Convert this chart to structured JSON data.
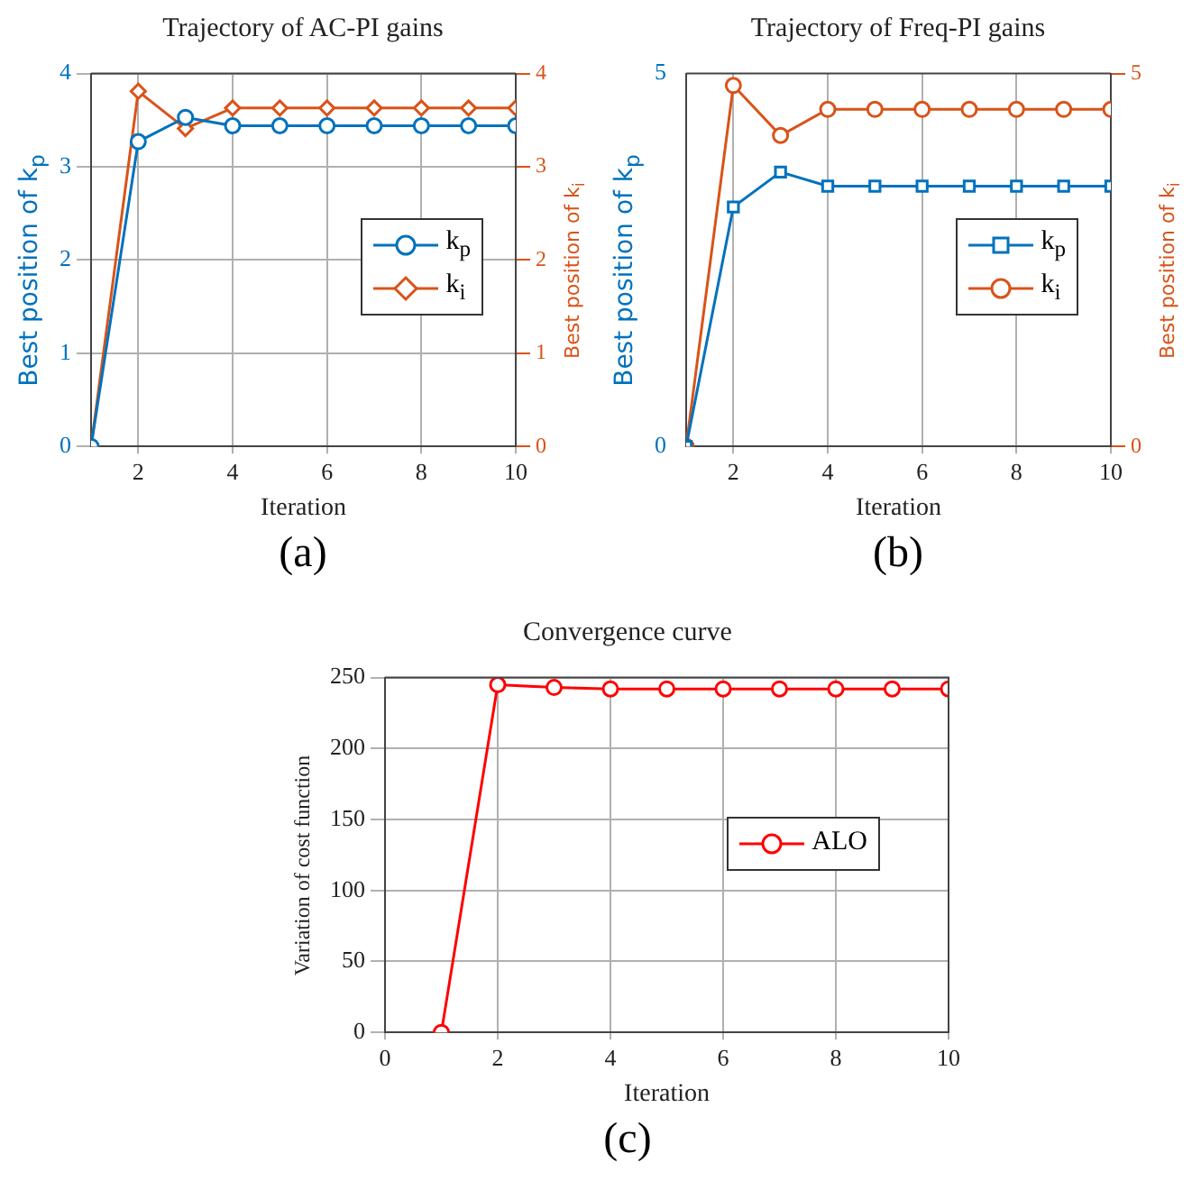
{
  "chart_data": [
    {
      "type": "line",
      "title": "Trajectory of AC-PI gains",
      "xlabel": "Iteration",
      "ylabel": "Best position of k$_{p}$",
      "y2label": "Best position of k$_{i}$",
      "x": [
        1,
        2,
        3,
        4,
        5,
        6,
        7,
        8,
        9,
        10
      ],
      "xlim": [
        1,
        10
      ],
      "xticks": [
        2,
        4,
        6,
        8,
        10
      ],
      "ylim": [
        0,
        4
      ],
      "yticks": [
        0,
        1,
        2,
        3,
        4
      ],
      "y2lim": [
        0,
        4
      ],
      "y2ticks": [
        0,
        1,
        2,
        3,
        4
      ],
      "grid": true,
      "legend": "right",
      "annotations": [
        "(a)"
      ],
      "series": [
        {
          "name": "k$_{p}$",
          "color": "#0072bd",
          "marker": "circle",
          "values": [
            0,
            3.27,
            3.53,
            3.44,
            3.44,
            3.44,
            3.44,
            3.44,
            3.44,
            3.44
          ]
        },
        {
          "name": "k$_{i}$",
          "color": "#d95319",
          "marker": "diamond",
          "axis": "y2",
          "values": [
            0,
            3.81,
            3.41,
            3.63,
            3.63,
            3.63,
            3.63,
            3.63,
            3.63,
            3.63
          ]
        }
      ]
    },
    {
      "type": "line",
      "title": "Trajectory of Freq-PI gains",
      "xlabel": "Iteration",
      "ylabel": "Best position of k$_{p}$",
      "y2label": "Best position of k$_{i}$",
      "x": [
        1,
        2,
        3,
        4,
        5,
        6,
        7,
        8,
        9,
        10
      ],
      "xlim": [
        1,
        10
      ],
      "xticks": [
        2,
        4,
        6,
        8,
        10
      ],
      "ylim": [
        0,
        5
      ],
      "yticks": [
        0,
        5
      ],
      "y2lim": [
        0,
        5
      ],
      "y2ticks": [
        0,
        5
      ],
      "grid": "x",
      "legend": "right",
      "annotations": [
        "(b)"
      ],
      "series": [
        {
          "name": "k$_{p}$",
          "color": "#0072bd",
          "marker": "square",
          "values": [
            0,
            3.21,
            3.68,
            3.49,
            3.49,
            3.49,
            3.49,
            3.49,
            3.49,
            3.49
          ]
        },
        {
          "name": "k$_{i}$",
          "color": "#d95319",
          "marker": "circle",
          "axis": "y2",
          "values": [
            0,
            4.84,
            4.17,
            4.52,
            4.52,
            4.52,
            4.52,
            4.52,
            4.52,
            4.52
          ]
        }
      ]
    },
    {
      "type": "line",
      "title": "Convergence curve",
      "xlabel": "Iteration",
      "ylabel": "Variation of cost function",
      "x": [
        1,
        2,
        3,
        4,
        5,
        6,
        7,
        8,
        9,
        10
      ],
      "xlim": [
        0,
        10
      ],
      "xticks": [
        0,
        2,
        4,
        6,
        8,
        10
      ],
      "ylim": [
        0,
        250
      ],
      "yticks": [
        0,
        50,
        100,
        150,
        200,
        250
      ],
      "grid": true,
      "legend": "right",
      "annotations": [
        "(c)"
      ],
      "series": [
        {
          "name": "ALO",
          "color": "#ff0000",
          "marker": "circle",
          "values": [
            0,
            245,
            243,
            242,
            242,
            242,
            242,
            242,
            242,
            242
          ]
        }
      ]
    }
  ]
}
